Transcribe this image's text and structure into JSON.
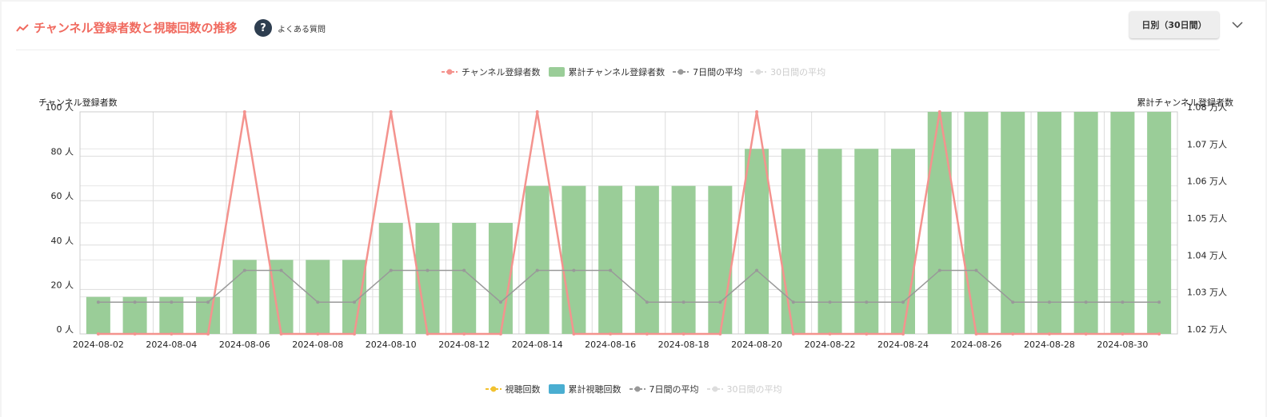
{
  "header": {
    "title": "チャンネル登録者数と視聴回数の推移",
    "faq": "よくある質問",
    "period_button": "日別（30日間）"
  },
  "chart_data": {
    "type": "bar_line",
    "ylabel": "チャンネル登録者数",
    "y2label": "累計チャンネル登録者数",
    "categories": [
      "2024-08-02",
      null,
      "2024-08-04",
      null,
      "2024-08-06",
      null,
      "2024-08-08",
      null,
      "2024-08-10",
      null,
      "2024-08-12",
      null,
      "2024-08-14",
      null,
      "2024-08-16",
      null,
      "2024-08-18",
      null,
      "2024-08-20",
      null,
      "2024-08-22",
      null,
      "2024-08-24",
      null,
      "2024-08-26",
      null,
      "2024-08-28",
      null,
      "2024-08-30",
      null
    ],
    "ylim": [
      0,
      100
    ],
    "yticks": [
      {
        "value": 0,
        "label": "0 人"
      },
      {
        "value": 20,
        "label": "20 人"
      },
      {
        "value": 40,
        "label": "40 人"
      },
      {
        "value": 60,
        "label": "60 人"
      },
      {
        "value": 80,
        "label": "80 人"
      },
      {
        "value": 100,
        "label": "100 人"
      }
    ],
    "y2lim": [
      1.02,
      1.08
    ],
    "y2ticks": [
      {
        "value": 1.02,
        "label": "1.02 万人"
      },
      {
        "value": 1.03,
        "label": "1.03 万人"
      },
      {
        "value": 1.04,
        "label": "1.04 万人"
      },
      {
        "value": 1.05,
        "label": "1.05 万人"
      },
      {
        "value": 1.06,
        "label": "1.06 万人"
      },
      {
        "value": 1.07,
        "label": "1.07 万人"
      },
      {
        "value": 1.08,
        "label": "1.08 万人"
      }
    ],
    "grid": true,
    "series": [
      {
        "name": "チャンネル登録者数",
        "type": "line",
        "color": "#f4938e",
        "values": [
          0,
          0,
          0,
          0,
          100,
          0,
          0,
          0,
          100,
          0,
          0,
          0,
          100,
          0,
          0,
          0,
          0,
          0,
          100,
          0,
          0,
          0,
          0,
          100,
          0,
          0,
          0,
          0,
          0,
          0
        ]
      },
      {
        "name": "累計チャンネル登録者数",
        "type": "bar",
        "axis": "y2",
        "color": "#9acd98",
        "values": [
          1.03,
          1.03,
          1.03,
          1.03,
          1.04,
          1.04,
          1.04,
          1.04,
          1.05,
          1.05,
          1.05,
          1.05,
          1.06,
          1.06,
          1.06,
          1.06,
          1.06,
          1.06,
          1.07,
          1.07,
          1.07,
          1.07,
          1.07,
          1.08,
          1.08,
          1.08,
          1.08,
          1.08,
          1.08,
          1.08
        ]
      },
      {
        "name": "7日間の平均",
        "type": "line",
        "color": "#999999",
        "values": [
          14.3,
          14.3,
          14.3,
          14.3,
          28.6,
          28.6,
          14.3,
          14.3,
          28.6,
          28.6,
          28.6,
          14.3,
          28.6,
          28.6,
          28.6,
          14.3,
          14.3,
          14.3,
          28.6,
          14.3,
          14.3,
          14.3,
          14.3,
          28.6,
          28.6,
          14.3,
          14.3,
          14.3,
          14.3,
          14.3
        ]
      },
      {
        "name": "30日間の平均",
        "type": "line",
        "color": "#cccccc",
        "visible": false
      }
    ]
  },
  "views_legend": [
    {
      "name": "視聴回数",
      "type": "line",
      "color": "#f2c230"
    },
    {
      "name": "累計視聴回数",
      "type": "bar",
      "color": "#4aaed1"
    },
    {
      "name": "7日間の平均",
      "type": "line",
      "color": "#999999"
    },
    {
      "name": "30日間の平均",
      "type": "line",
      "color": "#cccccc",
      "visible": false
    }
  ]
}
